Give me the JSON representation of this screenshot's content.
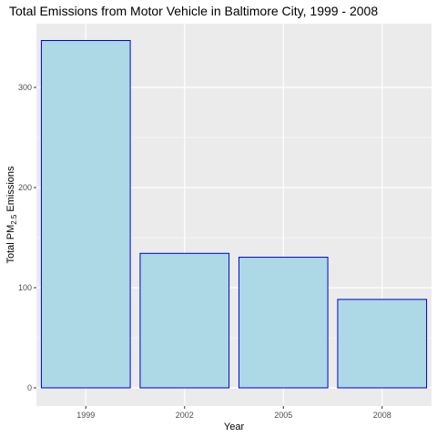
{
  "chart_data": {
    "type": "bar",
    "title": "Total Emissions from Motor Vehicle in Baltimore City, 1999 - 2008",
    "xlabel": "Year",
    "ylabel": {
      "prefix": "Total PM",
      "subscript": "2.5",
      "suffix": " Emissions"
    },
    "categories": [
      "1999",
      "2002",
      "2005",
      "2008"
    ],
    "values": [
      346.8,
      134.3,
      130.4,
      88.3
    ],
    "ylim": [
      0,
      364
    ],
    "yticks": [
      0,
      100,
      200,
      300
    ],
    "grid": true,
    "legend": "none",
    "colors": {
      "panel": "#ebebeb",
      "grid": "#ffffff",
      "bar_fill": "#add8e6",
      "bar_stroke": "#0000cd"
    }
  }
}
